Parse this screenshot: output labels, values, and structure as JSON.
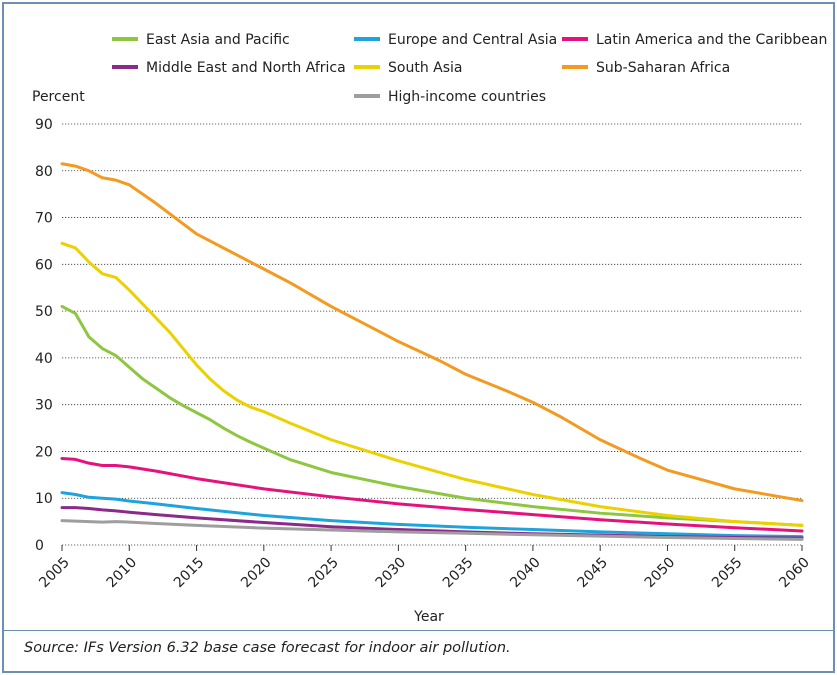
{
  "chart_data": {
    "type": "line",
    "title": "",
    "xlabel": "Year",
    "ylabel": "Percent",
    "xlim": [
      2005,
      2060
    ],
    "ylim": [
      0,
      90
    ],
    "x_ticks": [
      "2005",
      "2010",
      "2015",
      "2020",
      "2025",
      "2030",
      "2035",
      "2040",
      "2045",
      "2050",
      "2055",
      "2060"
    ],
    "y_ticks": [
      "0",
      "10",
      "20",
      "30",
      "40",
      "50",
      "60",
      "70",
      "80",
      "90"
    ],
    "grid": "horizontal dotted",
    "legend_position": "top",
    "series": [
      {
        "name": "East Asia and Pacific",
        "color": "#8dc63f",
        "points": [
          [
            2005,
            51
          ],
          [
            2006,
            49.5
          ],
          [
            2007,
            44.5
          ],
          [
            2008,
            42
          ],
          [
            2009,
            40.5
          ],
          [
            2010,
            38
          ],
          [
            2011,
            35.5
          ],
          [
            2012,
            33.5
          ],
          [
            2013,
            31.5
          ],
          [
            2014,
            29.8
          ],
          [
            2015,
            28.3
          ],
          [
            2016,
            26.8
          ],
          [
            2017,
            25
          ],
          [
            2018,
            23.4
          ],
          [
            2019,
            22
          ],
          [
            2020,
            20.7
          ],
          [
            2022,
            18.2
          ],
          [
            2025,
            15.5
          ],
          [
            2030,
            12.5
          ],
          [
            2035,
            10
          ],
          [
            2040,
            8.2
          ],
          [
            2045,
            6.8
          ],
          [
            2050,
            5.8
          ],
          [
            2055,
            5
          ],
          [
            2060,
            4.2
          ]
        ]
      },
      {
        "name": "Europe and Central Asia",
        "color": "#1ea4dd",
        "points": [
          [
            2005,
            11.2
          ],
          [
            2006,
            10.8
          ],
          [
            2007,
            10.2
          ],
          [
            2008,
            10
          ],
          [
            2009,
            9.8
          ],
          [
            2010,
            9.4
          ],
          [
            2012,
            8.8
          ],
          [
            2015,
            7.8
          ],
          [
            2020,
            6.3
          ],
          [
            2025,
            5.2
          ],
          [
            2030,
            4.4
          ],
          [
            2035,
            3.8
          ],
          [
            2040,
            3.3
          ],
          [
            2045,
            2.8
          ],
          [
            2050,
            2.4
          ],
          [
            2055,
            2
          ],
          [
            2060,
            1.8
          ]
        ]
      },
      {
        "name": "Latin America and the Caribbean",
        "color": "#e5127d",
        "points": [
          [
            2005,
            18.5
          ],
          [
            2006,
            18.3
          ],
          [
            2007,
            17.5
          ],
          [
            2008,
            17
          ],
          [
            2009,
            17
          ],
          [
            2010,
            16.7
          ],
          [
            2012,
            15.8
          ],
          [
            2015,
            14.2
          ],
          [
            2020,
            12
          ],
          [
            2025,
            10.3
          ],
          [
            2030,
            8.8
          ],
          [
            2035,
            7.6
          ],
          [
            2040,
            6.5
          ],
          [
            2045,
            5.4
          ],
          [
            2050,
            4.5
          ],
          [
            2055,
            3.7
          ],
          [
            2060,
            3
          ]
        ]
      },
      {
        "name": "Middle East and North Africa",
        "color": "#8b2a8b",
        "points": [
          [
            2005,
            8
          ],
          [
            2006,
            8
          ],
          [
            2007,
            7.8
          ],
          [
            2008,
            7.5
          ],
          [
            2009,
            7.3
          ],
          [
            2010,
            7
          ],
          [
            2012,
            6.5
          ],
          [
            2015,
            5.8
          ],
          [
            2020,
            4.8
          ],
          [
            2025,
            3.9
          ],
          [
            2030,
            3.3
          ],
          [
            2035,
            2.8
          ],
          [
            2040,
            2.4
          ],
          [
            2045,
            2.1
          ],
          [
            2050,
            1.8
          ],
          [
            2055,
            1.6
          ],
          [
            2060,
            1.5
          ]
        ]
      },
      {
        "name": "South Asia",
        "color": "#ecd100",
        "points": [
          [
            2005,
            64.5
          ],
          [
            2006,
            63.5
          ],
          [
            2007,
            60.5
          ],
          [
            2008,
            58
          ],
          [
            2009,
            57.2
          ],
          [
            2010,
            54.5
          ],
          [
            2011,
            51.5
          ],
          [
            2012,
            48.5
          ],
          [
            2013,
            45.5
          ],
          [
            2014,
            42
          ],
          [
            2015,
            38.5
          ],
          [
            2016,
            35.5
          ],
          [
            2017,
            33
          ],
          [
            2018,
            31
          ],
          [
            2019,
            29.5
          ],
          [
            2020,
            28.5
          ],
          [
            2022,
            26
          ],
          [
            2025,
            22.5
          ],
          [
            2030,
            18
          ],
          [
            2035,
            14
          ],
          [
            2040,
            10.8
          ],
          [
            2045,
            8.2
          ],
          [
            2050,
            6.3
          ],
          [
            2055,
            5
          ],
          [
            2060,
            4.2
          ]
        ]
      },
      {
        "name": "Sub-Saharan Africa",
        "color": "#f39a21",
        "points": [
          [
            2005,
            81.5
          ],
          [
            2006,
            81
          ],
          [
            2007,
            80
          ],
          [
            2008,
            78.5
          ],
          [
            2009,
            78
          ],
          [
            2010,
            77
          ],
          [
            2012,
            73
          ],
          [
            2015,
            66.5
          ],
          [
            2018,
            62
          ],
          [
            2020,
            59
          ],
          [
            2022,
            56
          ],
          [
            2025,
            51
          ],
          [
            2028,
            46.5
          ],
          [
            2030,
            43.5
          ],
          [
            2033,
            39.5
          ],
          [
            2035,
            36.5
          ],
          [
            2038,
            33
          ],
          [
            2040,
            30.5
          ],
          [
            2042,
            27.5
          ],
          [
            2045,
            22.5
          ],
          [
            2048,
            18.5
          ],
          [
            2050,
            16
          ],
          [
            2055,
            12
          ],
          [
            2060,
            9.5
          ]
        ]
      },
      {
        "name": "High-income countries",
        "color": "#9e9e9e",
        "points": [
          [
            2005,
            5.2
          ],
          [
            2006,
            5.1
          ],
          [
            2007,
            5
          ],
          [
            2008,
            4.9
          ],
          [
            2009,
            5
          ],
          [
            2010,
            4.9
          ],
          [
            2012,
            4.6
          ],
          [
            2015,
            4.2
          ],
          [
            2020,
            3.6
          ],
          [
            2025,
            3.2
          ],
          [
            2030,
            2.8
          ],
          [
            2035,
            2.5
          ],
          [
            2040,
            2.2
          ],
          [
            2045,
            1.9
          ],
          [
            2050,
            1.6
          ],
          [
            2055,
            1.4
          ],
          [
            2060,
            1.2
          ]
        ]
      }
    ]
  },
  "legend": {
    "rows": [
      [
        "East Asia and Pacific",
        "Europe and Central Asia",
        "Latin America and the Caribbean"
      ],
      [
        "Middle East and North Africa",
        "South Asia",
        "Sub-Saharan Africa"
      ],
      [
        "",
        "High-income countries",
        ""
      ]
    ]
  },
  "footer": {
    "source": "Source: IFs Version 6.32 base case forecast for indoor air pollution."
  }
}
